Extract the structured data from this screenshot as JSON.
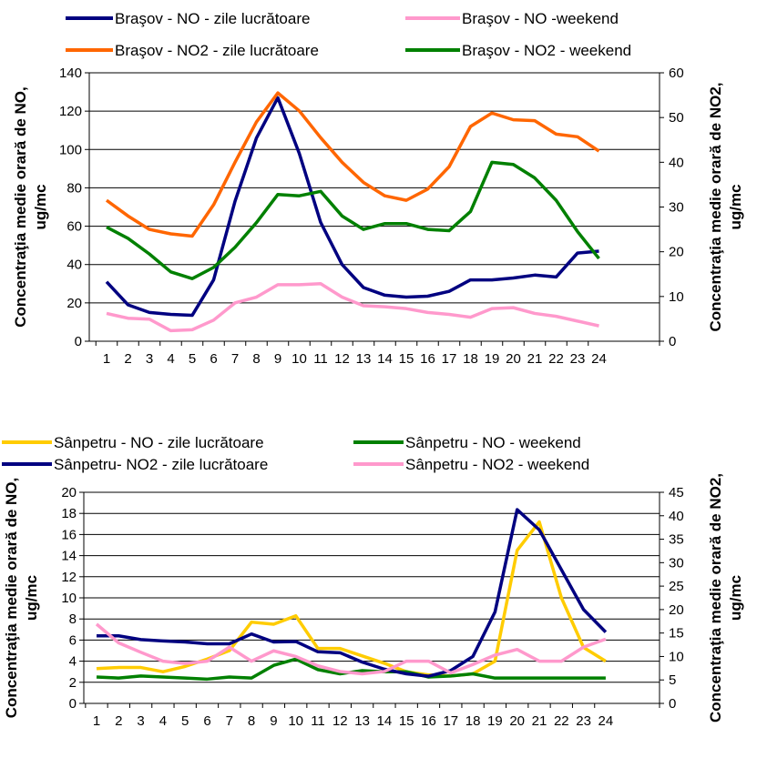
{
  "chart_data": [
    {
      "type": "line",
      "x": [
        1,
        2,
        3,
        4,
        5,
        6,
        7,
        8,
        9,
        10,
        11,
        12,
        13,
        14,
        15,
        16,
        17,
        18,
        19,
        20,
        21,
        22,
        23,
        24
      ],
      "ylabel": "Concentraţia medie orară de NO, ug/mc",
      "y2label": "Concentraţia medie orară de NO2, ug/mc",
      "ylim": [
        0,
        140
      ],
      "y2lim": [
        0,
        60
      ],
      "yticks": [
        0,
        20,
        40,
        60,
        80,
        100,
        120,
        140
      ],
      "y2ticks": [
        0,
        10,
        20,
        30,
        40,
        50,
        60
      ],
      "grid": true,
      "legend_position": "top",
      "series": [
        {
          "name": "Braşov  -  NO - zile lucrătoare",
          "axis": "left",
          "color": "#000080",
          "values": [
            31,
            19,
            15,
            14,
            13.5,
            32,
            73,
            106,
            127,
            98,
            62,
            40,
            28,
            24,
            23,
            23.5,
            26,
            32,
            32,
            33,
            34.5,
            33.5,
            46,
            47
          ]
        },
        {
          "name": "Braşov  - NO -weekend",
          "axis": "left",
          "color": "#ff99cc",
          "values": [
            14.5,
            12,
            11.5,
            5.5,
            6,
            11,
            20,
            23,
            29.5,
            29.5,
            30,
            23,
            18.5,
            18,
            17,
            15,
            14,
            12.5,
            17,
            17.5,
            14.5,
            13,
            10.5,
            8
          ]
        },
        {
          "name": "Braşov  - NO2 - zile lucrătoare",
          "axis": "right",
          "color": "#ff6600",
          "values": [
            31.5,
            28,
            25,
            24,
            23.5,
            30.5,
            40,
            49,
            55.5,
            51.5,
            45.5,
            40,
            35.5,
            32.5,
            31.5,
            34,
            39,
            48,
            51,
            49.5,
            49.3,
            46.3,
            45.7,
            42.5
          ]
        },
        {
          "name": "Braşov  - NO2 - weekend",
          "axis": "right",
          "color": "#008000",
          "values": [
            25.5,
            23,
            19.5,
            15.5,
            14,
            16.5,
            21,
            26.5,
            32.8,
            32.5,
            33.5,
            28,
            25,
            26.3,
            26.3,
            25,
            24.7,
            29,
            40,
            39.5,
            36.5,
            31.5,
            24.5,
            18.5
          ]
        }
      ]
    },
    {
      "type": "line",
      "x": [
        1,
        2,
        3,
        4,
        5,
        6,
        7,
        8,
        9,
        10,
        11,
        12,
        13,
        14,
        15,
        16,
        17,
        18,
        19,
        20,
        21,
        22,
        23,
        24
      ],
      "ylabel": "Concentraţia medie orară de NO, ug/mc",
      "y2label": "Concentraţia medie orară de NO2, ug/mc",
      "ylim": [
        0,
        20
      ],
      "y2lim": [
        0,
        45
      ],
      "yticks": [
        0,
        2,
        4,
        6,
        8,
        10,
        12,
        14,
        16,
        18,
        20
      ],
      "y2ticks": [
        0,
        5,
        10,
        15,
        20,
        25,
        30,
        35,
        40,
        45
      ],
      "grid": true,
      "legend_position": "top",
      "series": [
        {
          "name": "Sânpetru - NO - zile lucrătoare",
          "axis": "left",
          "color": "#ffcc00",
          "values": [
            3.3,
            3.4,
            3.4,
            3,
            3.5,
            4.2,
            5,
            7.7,
            7.5,
            8.3,
            5.2,
            5.2,
            4.5,
            3.8,
            3,
            2.7,
            2.6,
            2.8,
            4,
            14.5,
            17.2,
            10,
            5.3,
            4
          ]
        },
        {
          "name": "Sânpetru - NO - weekend",
          "axis": "left",
          "color": "#008000",
          "values": [
            2.5,
            2.4,
            2.6,
            2.5,
            2.4,
            2.3,
            2.5,
            2.4,
            3.6,
            4.2,
            3.2,
            2.8,
            3.1,
            3,
            3,
            2.5,
            2.6,
            2.8,
            2.4,
            2.4,
            2.4,
            2.4,
            2.4,
            2.4
          ]
        },
        {
          "name": "Sânpetru- NO2 - zile lucrătoare",
          "axis": "right",
          "color": "#000080",
          "values": [
            14.4,
            14.4,
            13.6,
            13.3,
            13.1,
            12.7,
            12.7,
            14.8,
            13.1,
            13.2,
            11,
            10.8,
            8.8,
            7.3,
            6.3,
            5.8,
            7,
            10,
            19.5,
            41.3,
            37,
            28.5,
            20,
            15.2
          ]
        },
        {
          "name": "Sânpetru - NO2 - weekend",
          "axis": "right",
          "color": "#ff99cc",
          "values": [
            16.9,
            12.9,
            10.9,
            9,
            8.5,
            9,
            12,
            9,
            11.2,
            10,
            8,
            6.8,
            6.3,
            6.8,
            9,
            9,
            6.5,
            8.3,
            10.3,
            11.5,
            9,
            9,
            12,
            13.7
          ]
        }
      ]
    }
  ]
}
